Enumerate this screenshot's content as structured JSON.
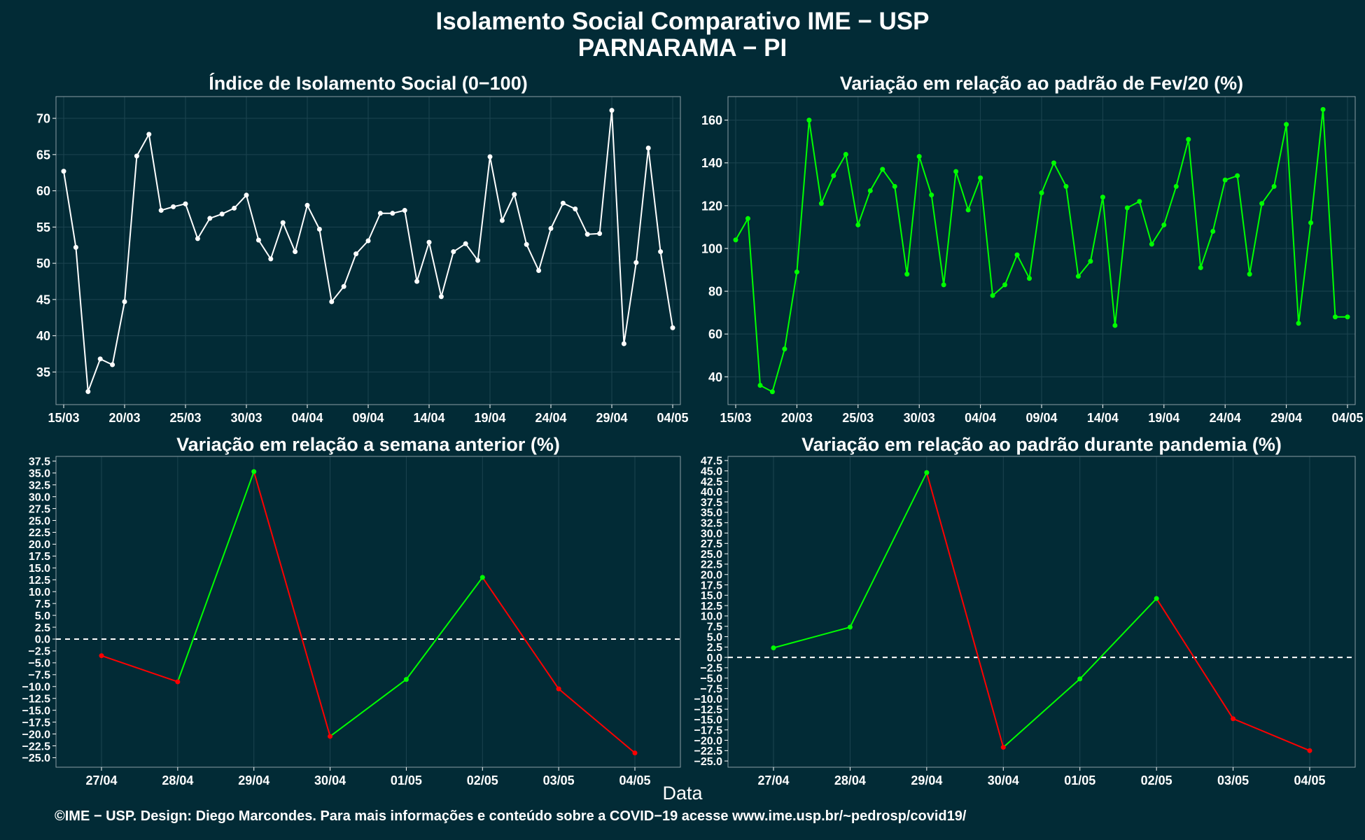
{
  "page": {
    "title_line1": "Isolamento Social Comparativo IME − USP",
    "title_line2": "PARNARAMA − PI",
    "x_axis_title": "Data",
    "footer": "©IME − USP. Design: Diego Marcondes. Para mais informações e conteúdo sobre a COVID−19 acesse www.ime.usp.br/~pedrosp/covid19/"
  },
  "colors": {
    "background": "#022b36",
    "white_series": "#ffffff",
    "green_series": "#00ff00",
    "up": "#00ff00",
    "down": "#ff0000",
    "grid": "#1c4450",
    "reference_line": "#ffffff"
  },
  "chart_data": [
    {
      "type": "line",
      "title": "Índice de Isolamento Social (0−100)",
      "color": "white",
      "x_start": "2020-03-15",
      "x_ticks": [
        "15/03",
        "20/03",
        "25/03",
        "30/03",
        "04/04",
        "09/04",
        "14/04",
        "19/04",
        "24/04",
        "29/04",
        "04/05"
      ],
      "ylim": [
        30.5,
        73
      ],
      "yticks": [
        35,
        40,
        45,
        50,
        55,
        60,
        65,
        70
      ],
      "values": [
        62.7,
        52.2,
        32.3,
        36.8,
        36.0,
        44.7,
        64.8,
        67.8,
        57.3,
        57.8,
        58.2,
        53.4,
        56.2,
        56.8,
        57.6,
        59.4,
        53.2,
        50.6,
        55.6,
        51.6,
        58.0,
        54.7,
        44.7,
        46.8,
        51.3,
        53.1,
        56.9,
        56.9,
        57.3,
        47.5,
        52.9,
        45.4,
        51.6,
        52.7,
        50.4,
        64.7,
        55.9,
        59.5,
        52.6,
        49.0,
        54.8,
        58.3,
        57.5,
        54.0,
        54.1,
        71.1,
        38.9,
        50.1,
        65.9,
        51.6,
        41.1
      ]
    },
    {
      "type": "line",
      "title": "Variação em relação ao padrão de Fev/20 (%)",
      "color": "green",
      "x_start": "2020-03-15",
      "x_ticks": [
        "15/03",
        "20/03",
        "25/03",
        "30/03",
        "04/04",
        "09/04",
        "14/04",
        "19/04",
        "24/04",
        "29/04",
        "04/05"
      ],
      "ylim": [
        27,
        171
      ],
      "yticks": [
        40,
        60,
        80,
        100,
        120,
        140,
        160
      ],
      "values": [
        104,
        114,
        36,
        33,
        53,
        89,
        160,
        121,
        134,
        144,
        111,
        127,
        137,
        129,
        88,
        143,
        125,
        83,
        136,
        118,
        133,
        78,
        83,
        97,
        86,
        126,
        140,
        129,
        87,
        94,
        124,
        64,
        119,
        122,
        102,
        111,
        129,
        151,
        91,
        108,
        132,
        134,
        88,
        121,
        129,
        158,
        65,
        112,
        165,
        68,
        68
      ]
    },
    {
      "type": "line",
      "title": "Variação em relação a semana anterior (%)",
      "color_rule": "green when rising, red when falling",
      "categories": [
        "27/04",
        "28/04",
        "29/04",
        "30/04",
        "01/05",
        "02/05",
        "03/05",
        "04/05"
      ],
      "values": [
        -3.5,
        -9.0,
        35.3,
        -20.5,
        -8.5,
        13.0,
        -10.5,
        -24.0
      ],
      "ylim": [
        -27,
        38.5
      ],
      "yticks": [
        -25,
        -22.5,
        -20,
        -17.5,
        -15,
        -12.5,
        -10,
        -7.5,
        -5,
        -2.5,
        0,
        2.5,
        5,
        7.5,
        10,
        12.5,
        15,
        17.5,
        20,
        22.5,
        25,
        27.5,
        30,
        32.5,
        35,
        37.5
      ],
      "ytick_labels": [
        "−25.0",
        "−22.5",
        "−20.0",
        "−17.5",
        "−15.0",
        "−12.5",
        "−10.0",
        "−7.5",
        "−5.0",
        "−2.5",
        "0.0",
        "2.5",
        "5.0",
        "7.5",
        "10.0",
        "12.5",
        "15.0",
        "17.5",
        "20.0",
        "22.5",
        "25.0",
        "27.5",
        "30.0",
        "32.5",
        "35.0",
        "37.5"
      ],
      "reference_line": 0
    },
    {
      "type": "line",
      "title": "Variação em relação ao padrão durante pandemia (%)",
      "color_rule": "green when rising, red when falling",
      "categories": [
        "27/04",
        "28/04",
        "29/04",
        "30/04",
        "01/05",
        "02/05",
        "03/05",
        "04/05"
      ],
      "values": [
        2.3,
        7.3,
        44.6,
        -21.7,
        -5.2,
        14.2,
        -14.8,
        -22.5
      ],
      "ylim": [
        -26.5,
        48.5
      ],
      "yticks": [
        -25,
        -22.5,
        -20,
        -17.5,
        -15,
        -12.5,
        -10,
        -7.5,
        -5,
        -2.5,
        0,
        2.5,
        5,
        7.5,
        10,
        12.5,
        15,
        17.5,
        20,
        22.5,
        25,
        27.5,
        30,
        32.5,
        35,
        37.5,
        40,
        42.5,
        45,
        47.5
      ],
      "ytick_labels": [
        "−25.0",
        "−22.5",
        "−20.0",
        "−17.5",
        "−15.0",
        "−12.5",
        "−10.0",
        "−7.5",
        "−5.0",
        "−2.5",
        "0.0",
        "2.5",
        "5.0",
        "7.5",
        "10.0",
        "12.5",
        "15.0",
        "17.5",
        "20.0",
        "22.5",
        "25.0",
        "27.5",
        "30.0",
        "32.5",
        "35.0",
        "37.5",
        "40.0",
        "42.5",
        "45.0",
        "47.5"
      ],
      "reference_line": 0
    }
  ]
}
